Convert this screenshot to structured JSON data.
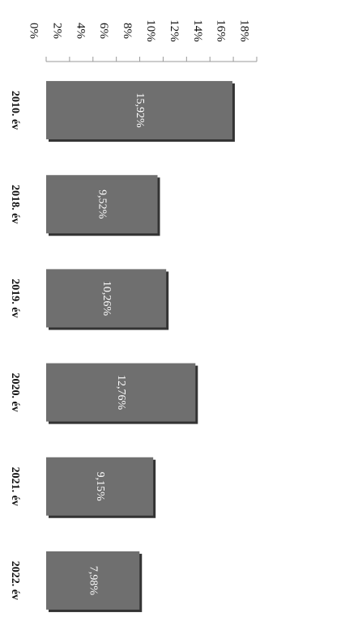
{
  "chart_data": {
    "type": "bar",
    "orientation": "horizontal",
    "categories": [
      "2010. év",
      "2018. év",
      "2019. év",
      "2020. év",
      "2021. év",
      "2022. év"
    ],
    "values": [
      15.92,
      9.52,
      10.26,
      12.76,
      9.15,
      7.98
    ],
    "value_labels": [
      "15,92%",
      "9,52%",
      "10,26%",
      "12,76%",
      "9,15%",
      "7,98%"
    ],
    "color": "#6f6f6f",
    "xlim": [
      0,
      18
    ],
    "xticks": [
      {
        "value": 0,
        "label": "0%"
      },
      {
        "value": 2,
        "label": "2%"
      },
      {
        "value": 4,
        "label": "4%"
      },
      {
        "value": 6,
        "label": "6%"
      },
      {
        "value": 8,
        "label": "8%"
      },
      {
        "value": 10,
        "label": "10%"
      },
      {
        "value": 12,
        "label": "12%"
      },
      {
        "value": 14,
        "label": "14%"
      },
      {
        "value": 16,
        "label": "16%"
      },
      {
        "value": 18,
        "label": "18%"
      }
    ],
    "grid": false
  }
}
